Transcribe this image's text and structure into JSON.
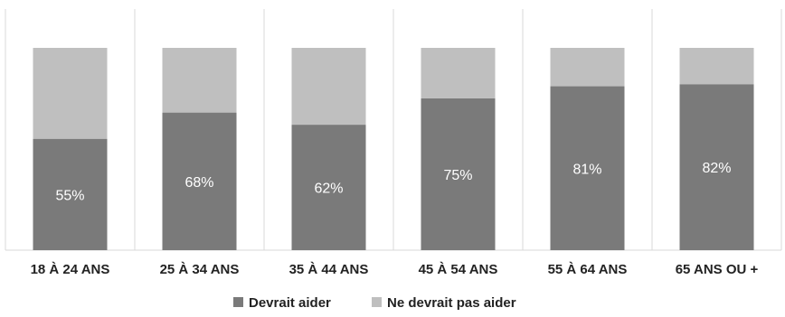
{
  "chart_data": {
    "type": "bar",
    "stacked": true,
    "normalized_to": 100,
    "categories": [
      "18 À 24 ANS",
      "25 À 34 ANS",
      "35 À 44 ANS",
      "45 À 54 ANS",
      "55 À 64 ANS",
      "65 ANS OU +"
    ],
    "series": [
      {
        "name": "Devrait aider",
        "values": [
          55,
          68,
          62,
          75,
          81,
          82
        ],
        "labels": [
          "55%",
          "68%",
          "62%",
          "75%",
          "81%",
          "82%"
        ],
        "color": "#7a7a7a"
      },
      {
        "name": "Ne devrait pas aider",
        "values": [
          45,
          32,
          38,
          25,
          19,
          18
        ],
        "color": "#bfbfbf"
      }
    ],
    "ylim": [
      0,
      100
    ],
    "grid": "vertical separators between categories",
    "legend": "bottom-center"
  }
}
